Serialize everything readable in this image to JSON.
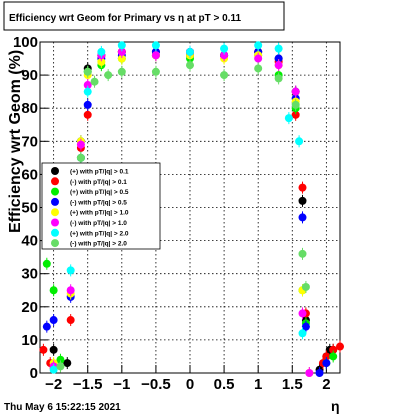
{
  "chart_data": {
    "type": "scatter",
    "title": "Efficiency wrt Geom for Primary vs   η at pT > 0.11",
    "xlabel": "η",
    "ylabel": "Efficiency wrt Geom (%)",
    "xlim": [
      -2.2,
      2.2
    ],
    "ylim": [
      0,
      100
    ],
    "x_ticks": [
      -2,
      -1.5,
      -1,
      -0.5,
      0,
      0.5,
      1,
      1.5,
      2
    ],
    "x_tick_labels": [
      "−2",
      "−1.5",
      "−1",
      "−0.5",
      "0",
      "0.5",
      "1",
      "1.5",
      "2"
    ],
    "y_ticks": [
      0,
      10,
      20,
      30,
      40,
      50,
      60,
      70,
      80,
      90,
      100
    ],
    "y_tick_labels": [
      "0",
      "10",
      "20",
      "30",
      "40",
      "50",
      "60",
      "70",
      "80",
      "90",
      "100"
    ],
    "grid": true,
    "legend_position": "middle-left",
    "series": [
      {
        "name": "(+) with pT/|q| > 0.1",
        "color": "#000000",
        "points": [
          [
            -2.0,
            7
          ],
          [
            -1.8,
            3
          ],
          [
            -1.6,
            65
          ],
          [
            -1.5,
            92
          ],
          [
            -1.3,
            96
          ],
          [
            -1.0,
            97
          ],
          [
            -0.5,
            97
          ],
          [
            0.0,
            96
          ],
          [
            0.5,
            96
          ],
          [
            1.0,
            97
          ],
          [
            1.3,
            95
          ],
          [
            1.55,
            85
          ],
          [
            1.65,
            52
          ],
          [
            1.7,
            16
          ],
          [
            1.9,
            1
          ],
          [
            2.0,
            5
          ],
          [
            2.05,
            7
          ],
          [
            2.1,
            7
          ]
        ]
      },
      {
        "name": "(-) with pT/|q| > 0.1",
        "color": "#ff0000",
        "points": [
          [
            -2.15,
            7
          ],
          [
            -2.05,
            3
          ],
          [
            -1.75,
            16
          ],
          [
            -1.6,
            68
          ],
          [
            -1.5,
            78
          ],
          [
            -1.3,
            96
          ],
          [
            -1.0,
            97
          ],
          [
            -0.5,
            96
          ],
          [
            0.0,
            97
          ],
          [
            0.5,
            96
          ],
          [
            1.0,
            97
          ],
          [
            1.3,
            94
          ],
          [
            1.55,
            78
          ],
          [
            1.65,
            56
          ],
          [
            1.7,
            18
          ],
          [
            1.95,
            3
          ],
          [
            2.0,
            5
          ],
          [
            2.1,
            7
          ],
          [
            2.2,
            8
          ]
        ]
      },
      {
        "name": "(+) with pT/|q| > 0.5",
        "color": "#00ee00",
        "points": [
          [
            -2.1,
            33
          ],
          [
            -2.0,
            25
          ],
          [
            -1.9,
            4
          ],
          [
            -1.6,
            70
          ],
          [
            -1.5,
            91
          ],
          [
            -1.3,
            93
          ],
          [
            -1.0,
            95
          ],
          [
            -0.5,
            96
          ],
          [
            0.0,
            95
          ],
          [
            0.5,
            96
          ],
          [
            1.0,
            96
          ],
          [
            1.3,
            90
          ],
          [
            1.55,
            80
          ],
          [
            1.65,
            25
          ],
          [
            1.7,
            15
          ],
          [
            2.0,
            3
          ],
          [
            2.1,
            5
          ]
        ]
      },
      {
        "name": "(-) with pT/|q| > 0.5",
        "color": "#0000ff",
        "points": [
          [
            -2.1,
            14
          ],
          [
            -2.0,
            16
          ],
          [
            -1.75,
            23
          ],
          [
            -1.6,
            70
          ],
          [
            -1.5,
            81
          ],
          [
            -1.3,
            95
          ],
          [
            -1.0,
            96
          ],
          [
            -0.5,
            97
          ],
          [
            0.0,
            97
          ],
          [
            0.5,
            96
          ],
          [
            1.0,
            97
          ],
          [
            1.3,
            95
          ],
          [
            1.55,
            83
          ],
          [
            1.65,
            47
          ],
          [
            1.7,
            14
          ],
          [
            1.9,
            0
          ],
          [
            2.0,
            3
          ]
        ]
      },
      {
        "name": "(+) with pT/|q| > 1.0",
        "color": "#ffff00",
        "points": [
          [
            -2.0,
            3
          ],
          [
            -1.75,
            24
          ],
          [
            -1.6,
            70
          ],
          [
            -1.5,
            90
          ],
          [
            -1.3,
            94
          ],
          [
            -1.0,
            95
          ],
          [
            -0.5,
            96
          ],
          [
            0.0,
            96
          ],
          [
            0.5,
            95
          ],
          [
            1.0,
            96
          ],
          [
            1.3,
            93
          ],
          [
            1.55,
            82
          ],
          [
            1.65,
            25
          ],
          [
            1.75,
            0
          ]
        ]
      },
      {
        "name": "(-) with pT/|q| > 1.0",
        "color": "#ff00ff",
        "points": [
          [
            -2.0,
            2
          ],
          [
            -1.75,
            25
          ],
          [
            -1.6,
            69
          ],
          [
            -1.5,
            87
          ],
          [
            -1.3,
            96
          ],
          [
            -1.0,
            97
          ],
          [
            -0.5,
            96
          ],
          [
            0.0,
            97
          ],
          [
            0.5,
            96
          ],
          [
            1.0,
            95
          ],
          [
            1.3,
            93
          ],
          [
            1.55,
            85
          ],
          [
            1.65,
            18
          ],
          [
            1.75,
            0
          ]
        ]
      },
      {
        "name": "(+) with pT/|q| > 2.0",
        "color": "#00ffff",
        "points": [
          [
            -2.0,
            1
          ],
          [
            -1.75,
            31
          ],
          [
            -1.6,
            65
          ],
          [
            -1.5,
            85
          ],
          [
            -1.3,
            97
          ],
          [
            -1.0,
            99
          ],
          [
            -0.5,
            99
          ],
          [
            0.0,
            97
          ],
          [
            0.5,
            98
          ],
          [
            1.0,
            99
          ],
          [
            1.3,
            98
          ],
          [
            1.45,
            77
          ],
          [
            1.6,
            70
          ],
          [
            1.65,
            12
          ]
        ]
      },
      {
        "name": "(-) with pT/|q| > 2.0",
        "color": "#66dd66",
        "points": [
          [
            -1.9,
            2
          ],
          [
            -1.6,
            65
          ],
          [
            -1.5,
            91
          ],
          [
            -1.4,
            88
          ],
          [
            -1.2,
            90
          ],
          [
            -1.0,
            91
          ],
          [
            -0.5,
            91
          ],
          [
            0.0,
            93
          ],
          [
            0.5,
            90
          ],
          [
            1.0,
            92
          ],
          [
            1.3,
            89
          ],
          [
            1.55,
            81
          ],
          [
            1.65,
            36
          ],
          [
            1.7,
            26
          ]
        ]
      }
    ]
  },
  "footer": {
    "timestamp": "Thu May  6 15:22:15 2021"
  }
}
